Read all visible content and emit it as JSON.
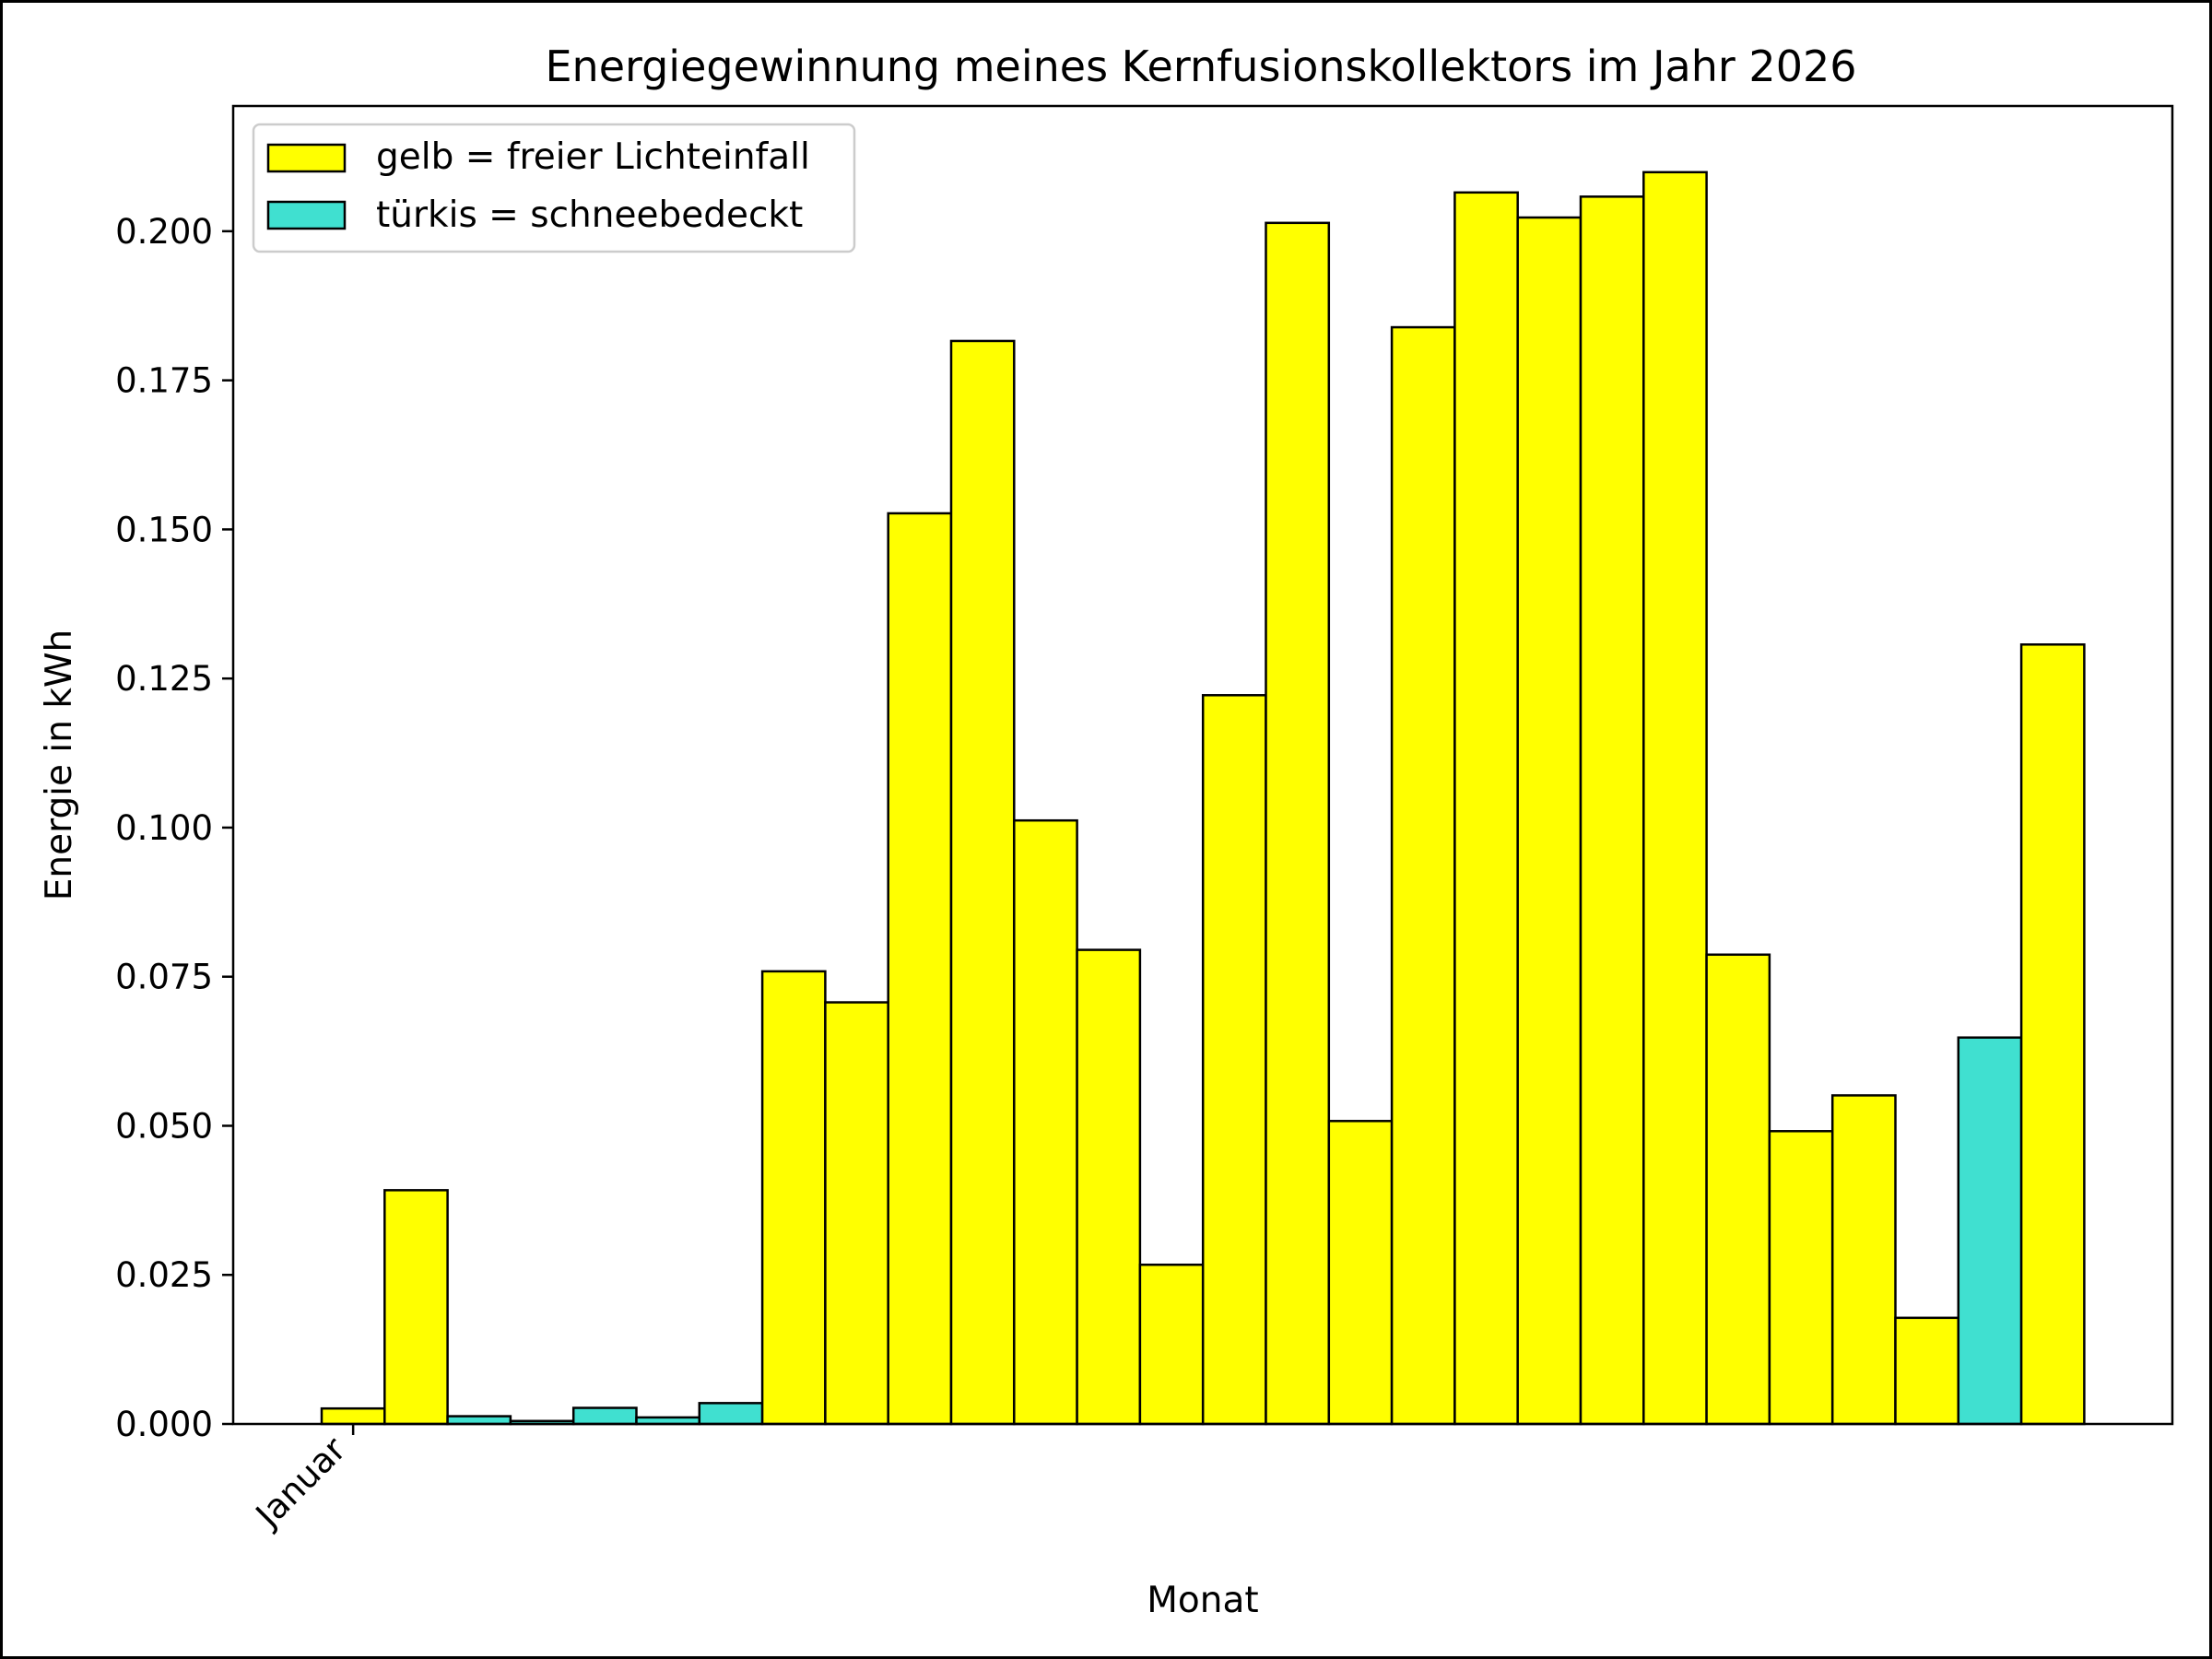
{
  "chart_data": {
    "type": "bar",
    "title": "Energiegewinnung meines Kernfusionskollektors im Jahr 2026",
    "xlabel": "Monat",
    "ylabel": "Energie in kWh",
    "ylim": [
      0,
      0.221
    ],
    "yticks": [
      "0.000",
      "0.025",
      "0.050",
      "0.075",
      "0.100",
      "0.125",
      "0.150",
      "0.175",
      "0.200"
    ],
    "xticks": [
      "Januar"
    ],
    "grid": false,
    "legend": {
      "placement": "top-left",
      "entries": [
        {
          "label": "gelb = freier Lichteinfall",
          "color": "#ffff00"
        },
        {
          "label": "türkis = schneebedeckt",
          "color": "#40e0d0"
        }
      ]
    },
    "colors": {
      "yellow": "#ffff00",
      "turquoise": "#40e0d0",
      "edge": "#000000"
    },
    "values": [
      0.0026,
      0.0392,
      0.0013,
      0.0005,
      0.0027,
      0.0011,
      0.0035,
      0.0759,
      0.0707,
      0.1527,
      0.1816,
      0.1012,
      0.0795,
      0.0267,
      0.1222,
      0.2014,
      0.0508,
      0.1839,
      0.2065,
      0.2023,
      0.2058,
      0.2099,
      0.0787,
      0.0491,
      0.0551,
      0.0178,
      0.0648,
      0.1307
    ],
    "bar_colors": [
      "yellow",
      "yellow",
      "turquoise",
      "turquoise",
      "turquoise",
      "turquoise",
      "turquoise",
      "yellow",
      "yellow",
      "yellow",
      "yellow",
      "yellow",
      "yellow",
      "yellow",
      "yellow",
      "yellow",
      "yellow",
      "yellow",
      "yellow",
      "yellow",
      "yellow",
      "yellow",
      "yellow",
      "yellow",
      "yellow",
      "yellow",
      "turquoise",
      "yellow"
    ]
  }
}
